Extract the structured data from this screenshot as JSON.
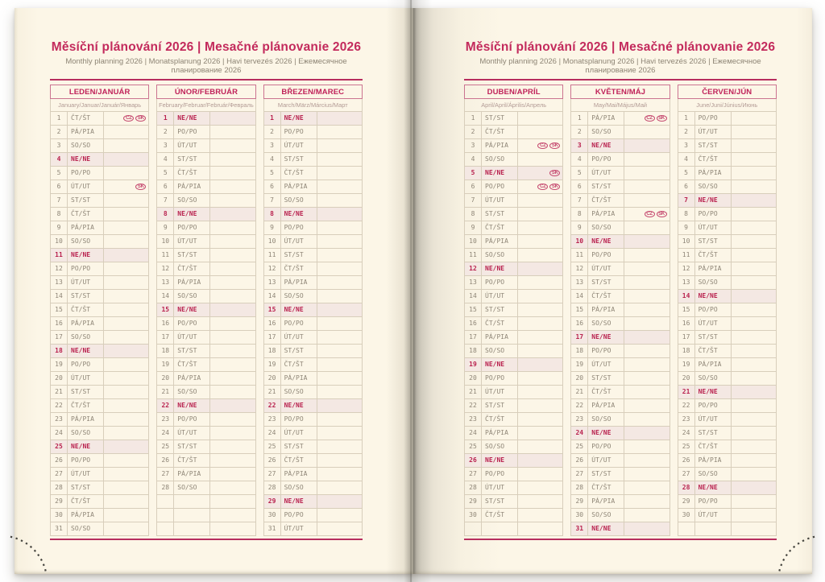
{
  "book": {
    "title": "Měsíční plánování 2026 | Mesačné plánovanie 2026",
    "subtitle": "Monthly planning 2026 | Monatsplanung 2026 | Havi tervezés 2026 | Ежемесячное планирование 2026"
  },
  "highlight_day": "NE/NE",
  "rows_per_table": 31,
  "colors": {
    "accent": "#c32a5c",
    "rule": "#b72e5e",
    "highlight_bg": "#f4e8e3",
    "grid": "#d8cebb",
    "day_text": "#8f8677",
    "page_cream": "#fcf6e7"
  },
  "pages": [
    {
      "side": "left",
      "months": [
        {
          "name": "LEDEN/JANUÁR",
          "languages": "January/Januar/Január/Январь",
          "days": [
            [
              1,
              "ČT/ŠT",
              [
                "CZ",
                "SK"
              ]
            ],
            [
              2,
              "PÁ/PIA"
            ],
            [
              3,
              "SO/SO"
            ],
            [
              4,
              "NE/NE"
            ],
            [
              5,
              "PO/PO"
            ],
            [
              6,
              "ÚT/UT",
              [
                "SK"
              ]
            ],
            [
              7,
              "ST/ST"
            ],
            [
              8,
              "ČT/ŠT"
            ],
            [
              9,
              "PÁ/PIA"
            ],
            [
              10,
              "SO/SO"
            ],
            [
              11,
              "NE/NE"
            ],
            [
              12,
              "PO/PO"
            ],
            [
              13,
              "ÚT/UT"
            ],
            [
              14,
              "ST/ST"
            ],
            [
              15,
              "ČT/ŠT"
            ],
            [
              16,
              "PÁ/PIA"
            ],
            [
              17,
              "SO/SO"
            ],
            [
              18,
              "NE/NE"
            ],
            [
              19,
              "PO/PO"
            ],
            [
              20,
              "ÚT/UT"
            ],
            [
              21,
              "ST/ST"
            ],
            [
              22,
              "ČT/ŠT"
            ],
            [
              23,
              "PÁ/PIA"
            ],
            [
              24,
              "SO/SO"
            ],
            [
              25,
              "NE/NE"
            ],
            [
              26,
              "PO/PO"
            ],
            [
              27,
              "ÚT/UT"
            ],
            [
              28,
              "ST/ST"
            ],
            [
              29,
              "ČT/ŠT"
            ],
            [
              30,
              "PÁ/PIA"
            ],
            [
              31,
              "SO/SO"
            ]
          ]
        },
        {
          "name": "ÚNOR/FEBRUÁR",
          "languages": "February/Februar/Február/Февраль",
          "days": [
            [
              1,
              "NE/NE"
            ],
            [
              2,
              "PO/PO"
            ],
            [
              3,
              "ÚT/UT"
            ],
            [
              4,
              "ST/ST"
            ],
            [
              5,
              "ČT/ŠT"
            ],
            [
              6,
              "PÁ/PIA"
            ],
            [
              7,
              "SO/SO"
            ],
            [
              8,
              "NE/NE"
            ],
            [
              9,
              "PO/PO"
            ],
            [
              10,
              "ÚT/UT"
            ],
            [
              11,
              "ST/ST"
            ],
            [
              12,
              "ČT/ŠT"
            ],
            [
              13,
              "PÁ/PIA"
            ],
            [
              14,
              "SO/SO"
            ],
            [
              15,
              "NE/NE"
            ],
            [
              16,
              "PO/PO"
            ],
            [
              17,
              "ÚT/UT"
            ],
            [
              18,
              "ST/ST"
            ],
            [
              19,
              "ČT/ŠT"
            ],
            [
              20,
              "PÁ/PIA"
            ],
            [
              21,
              "SO/SO"
            ],
            [
              22,
              "NE/NE"
            ],
            [
              23,
              "PO/PO"
            ],
            [
              24,
              "ÚT/UT"
            ],
            [
              25,
              "ST/ST"
            ],
            [
              26,
              "ČT/ŠT"
            ],
            [
              27,
              "PÁ/PIA"
            ],
            [
              28,
              "SO/SO"
            ]
          ]
        },
        {
          "name": "BŘEZEN/MAREC",
          "languages": "March/März/Március/Март",
          "days": [
            [
              1,
              "NE/NE"
            ],
            [
              2,
              "PO/PO"
            ],
            [
              3,
              "ÚT/UT"
            ],
            [
              4,
              "ST/ST"
            ],
            [
              5,
              "ČT/ŠT"
            ],
            [
              6,
              "PÁ/PIA"
            ],
            [
              7,
              "SO/SO"
            ],
            [
              8,
              "NE/NE"
            ],
            [
              9,
              "PO/PO"
            ],
            [
              10,
              "ÚT/UT"
            ],
            [
              11,
              "ST/ST"
            ],
            [
              12,
              "ČT/ŠT"
            ],
            [
              13,
              "PÁ/PIA"
            ],
            [
              14,
              "SO/SO"
            ],
            [
              15,
              "NE/NE"
            ],
            [
              16,
              "PO/PO"
            ],
            [
              17,
              "ÚT/UT"
            ],
            [
              18,
              "ST/ST"
            ],
            [
              19,
              "ČT/ŠT"
            ],
            [
              20,
              "PÁ/PIA"
            ],
            [
              21,
              "SO/SO"
            ],
            [
              22,
              "NE/NE"
            ],
            [
              23,
              "PO/PO"
            ],
            [
              24,
              "ÚT/UT"
            ],
            [
              25,
              "ST/ST"
            ],
            [
              26,
              "ČT/ŠT"
            ],
            [
              27,
              "PÁ/PIA"
            ],
            [
              28,
              "SO/SO"
            ],
            [
              29,
              "NE/NE"
            ],
            [
              30,
              "PO/PO"
            ],
            [
              31,
              "ÚT/UT"
            ]
          ]
        }
      ]
    },
    {
      "side": "right",
      "months": [
        {
          "name": "DUBEN/APRÍL",
          "languages": "April/April/Április/Апрель",
          "days": [
            [
              1,
              "ST/ST"
            ],
            [
              2,
              "ČT/ŠT"
            ],
            [
              3,
              "PÁ/PIA",
              [
                "CZ",
                "SK"
              ]
            ],
            [
              4,
              "SO/SO"
            ],
            [
              5,
              "NE/NE",
              [
                "SK"
              ]
            ],
            [
              6,
              "PO/PO",
              [
                "CZ",
                "SK"
              ]
            ],
            [
              7,
              "ÚT/UT"
            ],
            [
              8,
              "ST/ST"
            ],
            [
              9,
              "ČT/ŠT"
            ],
            [
              10,
              "PÁ/PIA"
            ],
            [
              11,
              "SO/SO"
            ],
            [
              12,
              "NE/NE"
            ],
            [
              13,
              "PO/PO"
            ],
            [
              14,
              "ÚT/UT"
            ],
            [
              15,
              "ST/ST"
            ],
            [
              16,
              "ČT/ŠT"
            ],
            [
              17,
              "PÁ/PIA"
            ],
            [
              18,
              "SO/SO"
            ],
            [
              19,
              "NE/NE"
            ],
            [
              20,
              "PO/PO"
            ],
            [
              21,
              "ÚT/UT"
            ],
            [
              22,
              "ST/ST"
            ],
            [
              23,
              "ČT/ŠT"
            ],
            [
              24,
              "PÁ/PIA"
            ],
            [
              25,
              "SO/SO"
            ],
            [
              26,
              "NE/NE"
            ],
            [
              27,
              "PO/PO"
            ],
            [
              28,
              "ÚT/UT"
            ],
            [
              29,
              "ST/ST"
            ],
            [
              30,
              "ČT/ŠT"
            ]
          ]
        },
        {
          "name": "KVĚTEN/MÁJ",
          "languages": "May/Mai/Május/Май",
          "days": [
            [
              1,
              "PÁ/PIA",
              [
                "CZ",
                "SK"
              ]
            ],
            [
              2,
              "SO/SO"
            ],
            [
              3,
              "NE/NE"
            ],
            [
              4,
              "PO/PO"
            ],
            [
              5,
              "ÚT/UT"
            ],
            [
              6,
              "ST/ST"
            ],
            [
              7,
              "ČT/ŠT"
            ],
            [
              8,
              "PÁ/PIA",
              [
                "CZ",
                "SK"
              ]
            ],
            [
              9,
              "SO/SO"
            ],
            [
              10,
              "NE/NE"
            ],
            [
              11,
              "PO/PO"
            ],
            [
              12,
              "ÚT/UT"
            ],
            [
              13,
              "ST/ST"
            ],
            [
              14,
              "ČT/ŠT"
            ],
            [
              15,
              "PÁ/PIA"
            ],
            [
              16,
              "SO/SO"
            ],
            [
              17,
              "NE/NE"
            ],
            [
              18,
              "PO/PO"
            ],
            [
              19,
              "ÚT/UT"
            ],
            [
              20,
              "ST/ST"
            ],
            [
              21,
              "ČT/ŠT"
            ],
            [
              22,
              "PÁ/PIA"
            ],
            [
              23,
              "SO/SO"
            ],
            [
              24,
              "NE/NE"
            ],
            [
              25,
              "PO/PO"
            ],
            [
              26,
              "ÚT/UT"
            ],
            [
              27,
              "ST/ST"
            ],
            [
              28,
              "ČT/ŠT"
            ],
            [
              29,
              "PÁ/PIA"
            ],
            [
              30,
              "SO/SO"
            ],
            [
              31,
              "NE/NE"
            ]
          ]
        },
        {
          "name": "ČERVEN/JÚN",
          "languages": "June/Juni/Június/Июнь",
          "days": [
            [
              1,
              "PO/PO"
            ],
            [
              2,
              "ÚT/UT"
            ],
            [
              3,
              "ST/ST"
            ],
            [
              4,
              "ČT/ŠT"
            ],
            [
              5,
              "PÁ/PIA"
            ],
            [
              6,
              "SO/SO"
            ],
            [
              7,
              "NE/NE"
            ],
            [
              8,
              "PO/PO"
            ],
            [
              9,
              "ÚT/UT"
            ],
            [
              10,
              "ST/ST"
            ],
            [
              11,
              "ČT/ŠT"
            ],
            [
              12,
              "PÁ/PIA"
            ],
            [
              13,
              "SO/SO"
            ],
            [
              14,
              "NE/NE"
            ],
            [
              15,
              "PO/PO"
            ],
            [
              16,
              "ÚT/UT"
            ],
            [
              17,
              "ST/ST"
            ],
            [
              18,
              "ČT/ŠT"
            ],
            [
              19,
              "PÁ/PIA"
            ],
            [
              20,
              "SO/SO"
            ],
            [
              21,
              "NE/NE"
            ],
            [
              22,
              "PO/PO"
            ],
            [
              23,
              "ÚT/UT"
            ],
            [
              24,
              "ST/ST"
            ],
            [
              25,
              "ČT/ŠT"
            ],
            [
              26,
              "PÁ/PIA"
            ],
            [
              27,
              "SO/SO"
            ],
            [
              28,
              "NE/NE"
            ],
            [
              29,
              "PO/PO"
            ],
            [
              30,
              "ÚT/UT"
            ]
          ]
        }
      ]
    }
  ]
}
